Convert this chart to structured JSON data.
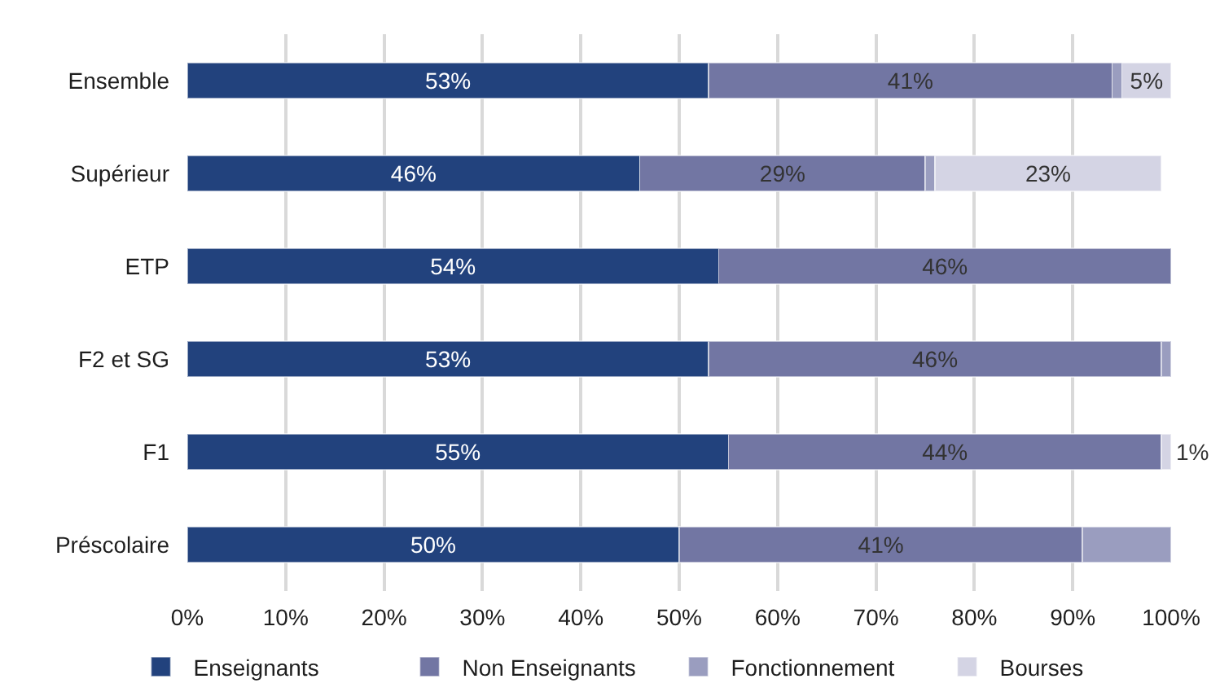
{
  "chart_data": {
    "type": "bar",
    "orientation": "horizontal",
    "stacked": true,
    "categories": [
      "Ensemble",
      "Supérieur",
      "ETP",
      "F2 et SG",
      "F1",
      "Préscolaire"
    ],
    "series": [
      {
        "name": "Enseignants",
        "color": "#22427d",
        "values": [
          53,
          46,
          54,
          53,
          55,
          50
        ],
        "value_labels": [
          "53%",
          "46%",
          "54%",
          "53%",
          "55%",
          "50%"
        ]
      },
      {
        "name": "Non Enseignants",
        "color": "#7276a3",
        "values": [
          41,
          29,
          46,
          46,
          44,
          41
        ],
        "value_labels": [
          "41%",
          "29%",
          "46%",
          "46%",
          "44%",
          "41%"
        ]
      },
      {
        "name": "Fonctionnement",
        "color": "#9a9dbf",
        "values": [
          1,
          1,
          null,
          1,
          null,
          9
        ]
      },
      {
        "name": "Bourses",
        "color": "#d4d4e4",
        "values": [
          5,
          23,
          null,
          null,
          1,
          null
        ],
        "value_labels": [
          "5%",
          "23%",
          null,
          null,
          "1%",
          null
        ]
      }
    ],
    "xlim": [
      0,
      100
    ],
    "xticks": [
      {
        "value": 0,
        "label": "0%"
      },
      {
        "value": 10,
        "label": "10%"
      },
      {
        "value": 20,
        "label": "20%"
      },
      {
        "value": 30,
        "label": "30%"
      },
      {
        "value": 40,
        "label": "40%"
      },
      {
        "value": 50,
        "label": "50%"
      },
      {
        "value": 60,
        "label": "60%"
      },
      {
        "value": 70,
        "label": "70%"
      },
      {
        "value": 80,
        "label": "80%"
      },
      {
        "value": 90,
        "label": "90%"
      },
      {
        "value": 100,
        "label": "100%"
      }
    ],
    "grid": "x",
    "legend": "bottom"
  }
}
